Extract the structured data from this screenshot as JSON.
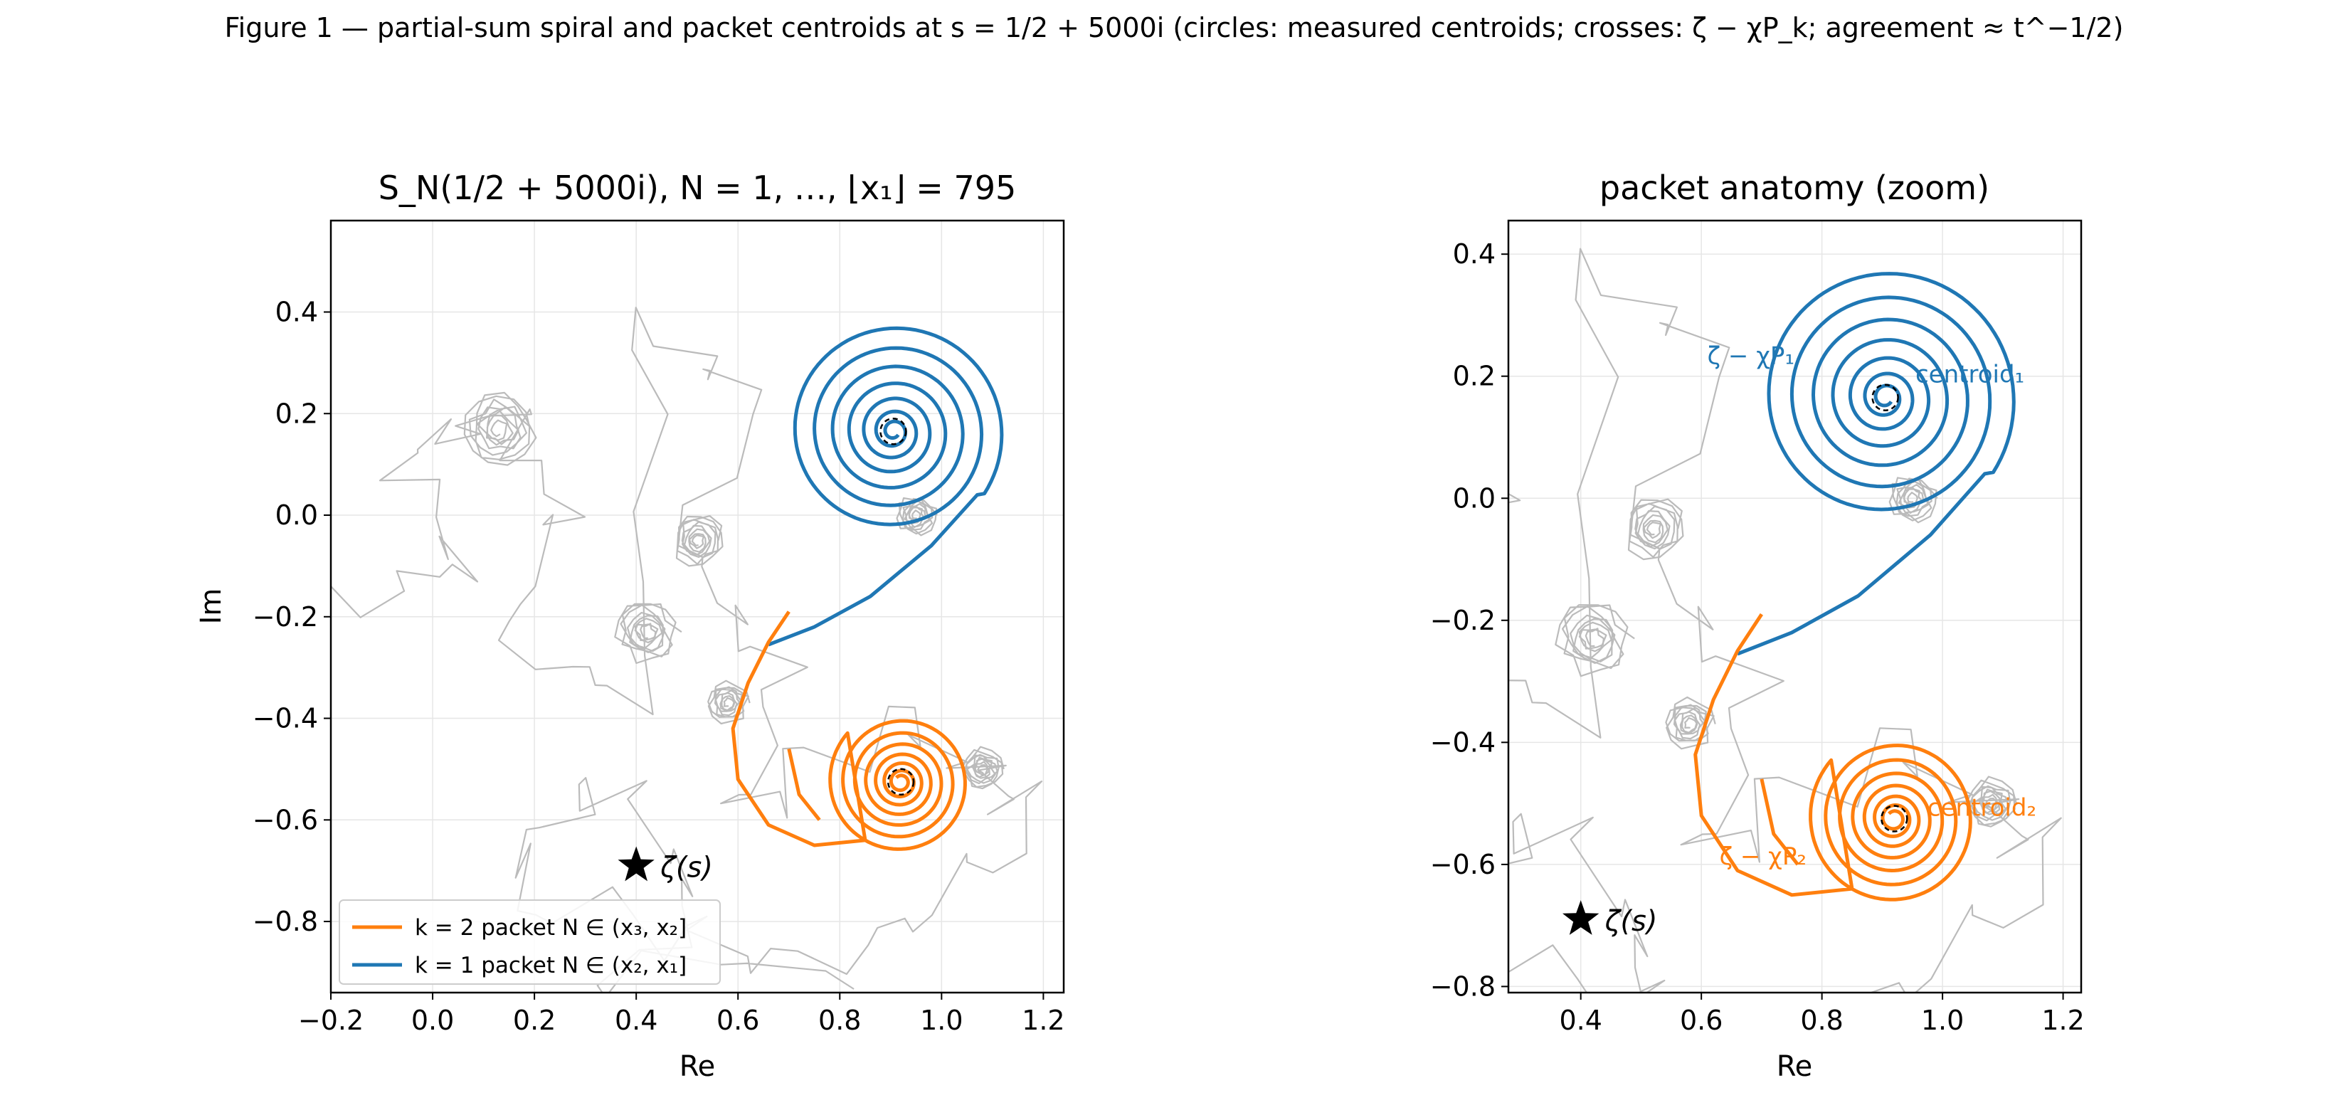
{
  "figure_title": "Figure 1 — partial-sum spiral and packet centroids at s = 1/2 + 5000i  (circles: measured centroids;  crosses: ζ − χP_k;  agreement ≈ t^−1/2)",
  "colors": {
    "k1": "#1f77b4",
    "k2": "#ff7f0e",
    "spiral": "#bbbbbb",
    "grid": "#e6e6e6",
    "zeta": "#000000"
  },
  "chart_data": [
    {
      "type": "line",
      "title": "S_N(1/2 + 5000i),  N = 1, …, ⌊x₁⌋ = 795",
      "xlabel": "Re",
      "ylabel": "Im",
      "xlim": [
        -0.2,
        1.24
      ],
      "ylim": [
        -0.94,
        0.58
      ],
      "xticks": [
        "−0.2",
        "0.0",
        "0.2",
        "0.4",
        "0.6",
        "0.8",
        "1.0",
        "1.2"
      ],
      "yticks": [
        "−0.8",
        "−0.6",
        "−0.4",
        "−0.2",
        "0.0",
        "0.2",
        "0.4"
      ],
      "grid": true,
      "legend": {
        "position": "lower-left",
        "entries": [
          {
            "label": "k = 2 packet  N ∈ (x₃, x₂]",
            "color": "#ff7f0e"
          },
          {
            "label": "k = 1 packet  N ∈ (x₂, x₁]",
            "color": "#1f77b4"
          }
        ]
      },
      "zeta": {
        "x": 0.4,
        "y": -0.69,
        "label": "ζ(s)"
      },
      "centroids": [
        {
          "packet": "k = 1",
          "x": 0.905,
          "y": 0.165
        },
        {
          "packet": "k = 2",
          "x": 0.92,
          "y": -0.525
        }
      ],
      "annotations": []
    },
    {
      "type": "line",
      "title": "packet anatomy (zoom)",
      "xlabel": "Re",
      "ylabel": "",
      "xlim": [
        0.28,
        1.23
      ],
      "ylim": [
        -0.81,
        0.455
      ],
      "xticks": [
        "0.4",
        "0.6",
        "0.8",
        "1.0",
        "1.2"
      ],
      "yticks": [
        "−0.8",
        "−0.6",
        "−0.4",
        "−0.2",
        "0.0",
        "0.2",
        "0.4"
      ],
      "grid": true,
      "zeta": {
        "x": 0.4,
        "y": -0.69,
        "label": "ζ(s)"
      },
      "centroids": [
        {
          "packet": "k = 1",
          "x": 0.905,
          "y": 0.165
        },
        {
          "packet": "k = 2",
          "x": 0.92,
          "y": -0.525
        }
      ],
      "annotations": [
        {
          "text": "ζ − χP₁",
          "x": 0.61,
          "y": 0.22,
          "color": "#1f77b4"
        },
        {
          "text": "centroid₁",
          "x": 0.955,
          "y": 0.19,
          "color": "#1f77b4"
        },
        {
          "text": "ζ − χP₂",
          "x": 0.63,
          "y": -0.6,
          "color": "#ff7f0e"
        },
        {
          "text": "centroid₂",
          "x": 0.975,
          "y": -0.52,
          "color": "#ff7f0e"
        }
      ]
    }
  ]
}
